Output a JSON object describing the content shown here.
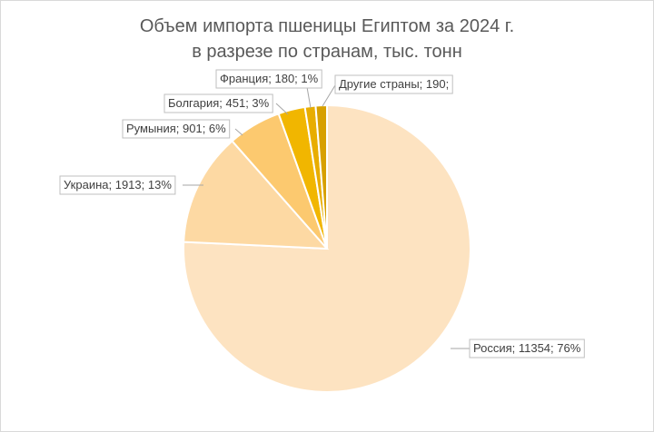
{
  "chart_data": {
    "type": "pie",
    "title_lines": [
      "Объем импорта пшеницы Египтом за 2024 г.",
      "в разрезе по странам, тыс. тонн"
    ],
    "slices": [
      {
        "name": "Россия",
        "value": 11354,
        "percent": "76%",
        "label": "Россия; 11354; 76%",
        "color": "#fde3c1"
      },
      {
        "name": "Украина",
        "value": 1913,
        "percent": "13%",
        "label": "Украина; 1913; 13%",
        "color": "#fdd9a3"
      },
      {
        "name": "Румыния",
        "value": 901,
        "percent": "6%",
        "label": "Румыния; 901; 6%",
        "color": "#fcc96f"
      },
      {
        "name": "Болгария",
        "value": 451,
        "percent": "3%",
        "label": "Болгария; 451; 3%",
        "color": "#f1b600"
      },
      {
        "name": "Франция",
        "value": 180,
        "percent": "1%",
        "label": "Франция; 180; 1%",
        "color": "#e8ad00"
      },
      {
        "name": "Другие страны",
        "value": 190,
        "percent": "",
        "label": "Другие страны; 190;",
        "color": "#d7a000"
      }
    ],
    "legend": "none"
  }
}
